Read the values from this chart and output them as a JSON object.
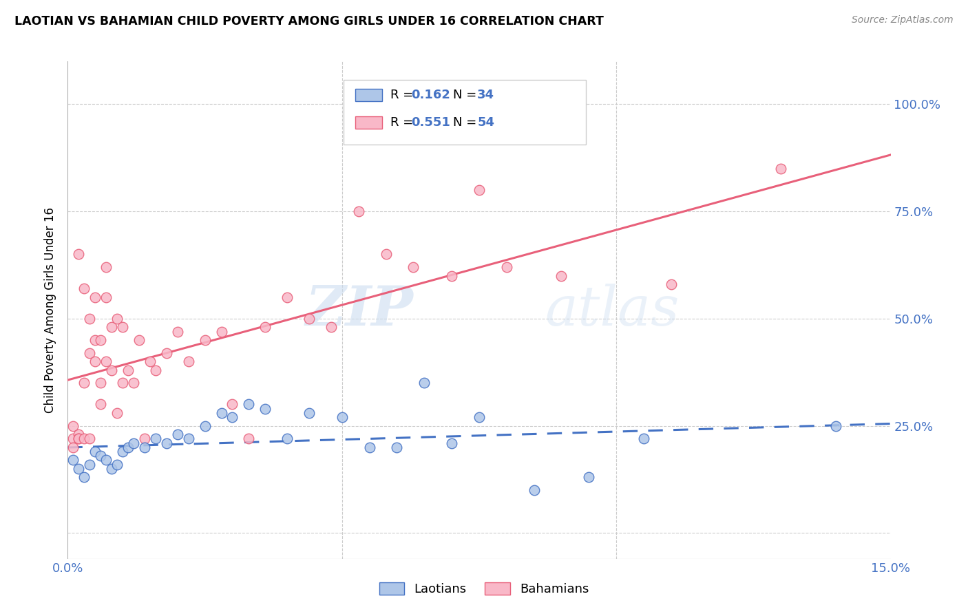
{
  "title": "LAOTIAN VS BAHAMIAN CHILD POVERTY AMONG GIRLS UNDER 16 CORRELATION CHART",
  "source": "Source: ZipAtlas.com",
  "ylabel": "Child Poverty Among Girls Under 16",
  "xlim": [
    0.0,
    0.15
  ],
  "ylim": [
    -0.06,
    1.1
  ],
  "yticks": [
    0.0,
    0.25,
    0.5,
    0.75,
    1.0
  ],
  "ytick_labels": [
    "",
    "25.0%",
    "50.0%",
    "75.0%",
    "100.0%"
  ],
  "xtick_positions": [
    0.0,
    0.05,
    0.1,
    0.15
  ],
  "xtick_labels": [
    "0.0%",
    "",
    "",
    "15.0%"
  ],
  "laotian_color": "#aec6e8",
  "bahamian_color": "#f9b8c8",
  "laotian_edge_color": "#4472c4",
  "bahamian_edge_color": "#e8607a",
  "laotian_line_color": "#4472c4",
  "bahamian_line_color": "#e8607a",
  "r_laotian": "0.162",
  "n_laotian": "34",
  "r_bahamian": "0.551",
  "n_bahamian": "54",
  "watermark_zip": "ZIP",
  "watermark_atlas": "atlas",
  "blue_color": "#4472c4",
  "laotian_x": [
    0.001,
    0.002,
    0.003,
    0.004,
    0.005,
    0.006,
    0.007,
    0.008,
    0.009,
    0.01,
    0.011,
    0.012,
    0.014,
    0.016,
    0.018,
    0.02,
    0.022,
    0.025,
    0.028,
    0.03,
    0.033,
    0.036,
    0.04,
    0.044,
    0.05,
    0.055,
    0.06,
    0.065,
    0.07,
    0.075,
    0.085,
    0.095,
    0.105,
    0.14
  ],
  "laotian_y": [
    0.17,
    0.15,
    0.13,
    0.16,
    0.19,
    0.18,
    0.17,
    0.15,
    0.16,
    0.19,
    0.2,
    0.21,
    0.2,
    0.22,
    0.21,
    0.23,
    0.22,
    0.25,
    0.28,
    0.27,
    0.3,
    0.29,
    0.22,
    0.28,
    0.27,
    0.2,
    0.2,
    0.35,
    0.21,
    0.27,
    0.1,
    0.13,
    0.22,
    0.25
  ],
  "bahamian_x": [
    0.001,
    0.001,
    0.001,
    0.002,
    0.002,
    0.002,
    0.002,
    0.003,
    0.003,
    0.003,
    0.004,
    0.004,
    0.004,
    0.005,
    0.005,
    0.005,
    0.006,
    0.006,
    0.006,
    0.007,
    0.007,
    0.007,
    0.008,
    0.008,
    0.009,
    0.009,
    0.01,
    0.01,
    0.011,
    0.012,
    0.013,
    0.014,
    0.015,
    0.016,
    0.018,
    0.02,
    0.022,
    0.025,
    0.028,
    0.03,
    0.033,
    0.036,
    0.04,
    0.044,
    0.048,
    0.053,
    0.058,
    0.063,
    0.07,
    0.075,
    0.08,
    0.09,
    0.11,
    0.13
  ],
  "bahamian_y": [
    0.22,
    0.25,
    0.2,
    0.23,
    0.22,
    0.65,
    0.22,
    0.35,
    0.22,
    0.57,
    0.42,
    0.22,
    0.5,
    0.4,
    0.45,
    0.55,
    0.35,
    0.45,
    0.3,
    0.4,
    0.55,
    0.62,
    0.38,
    0.48,
    0.28,
    0.5,
    0.35,
    0.48,
    0.38,
    0.35,
    0.45,
    0.22,
    0.4,
    0.38,
    0.42,
    0.47,
    0.4,
    0.45,
    0.47,
    0.3,
    0.22,
    0.48,
    0.55,
    0.5,
    0.48,
    0.75,
    0.65,
    0.62,
    0.6,
    0.8,
    0.62,
    0.6,
    0.58,
    0.85
  ]
}
